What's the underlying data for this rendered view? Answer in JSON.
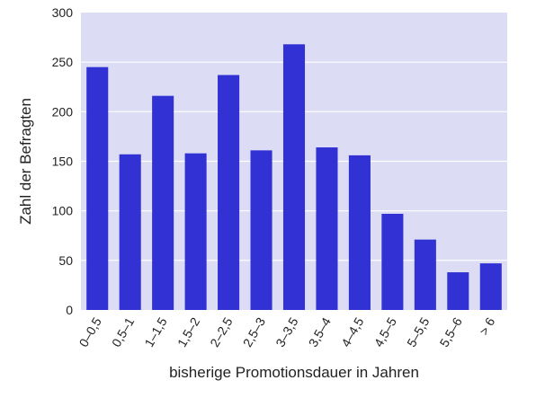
{
  "chart_data": {
    "type": "bar",
    "categories": [
      "0–0,5",
      "0,5–1",
      "1–1,5",
      "1,5–2",
      "2–2,5",
      "2,5–3",
      "3–3,5",
      "3,5–4",
      "4–4,5",
      "4,5–5",
      "5–5,5",
      "5,5–6",
      "> 6"
    ],
    "values": [
      245,
      157,
      216,
      158,
      237,
      161,
      268,
      164,
      156,
      97,
      71,
      38,
      47
    ],
    "xlabel": "bisherige Promotionsdauer in Jahren",
    "ylabel": "Zahl der Befragten",
    "ylim": [
      0,
      300
    ],
    "yticks": [
      0,
      50,
      100,
      150,
      200,
      250,
      300
    ],
    "grid": true,
    "colors": {
      "bar": "#3131d4",
      "plot_background": "#dcdcf5",
      "gridline": "#ffffff"
    }
  }
}
